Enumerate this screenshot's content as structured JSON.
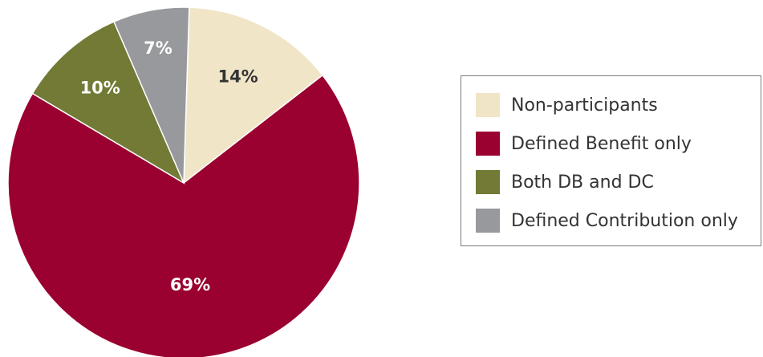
{
  "chart_data": {
    "type": "pie",
    "title": "",
    "slices": [
      {
        "name": "Non-participants",
        "value": 14,
        "label": "14%",
        "color": "#f1e5c8",
        "label_color": "#333333"
      },
      {
        "name": "Defined Benefit only",
        "value": 69,
        "label": "69%",
        "color": "#9a0030",
        "label_color": "#ffffff"
      },
      {
        "name": "Both DB and DC",
        "value": 10,
        "label": "10%",
        "color": "#727a35",
        "label_color": "#ffffff"
      },
      {
        "name": "Defined Contribution only",
        "value": 7,
        "label": "7%",
        "color": "#98999c",
        "label_color": "#ffffff"
      }
    ],
    "legend": {
      "position": "right",
      "items": [
        {
          "label": "Non-participants",
          "color": "#f1e5c8"
        },
        {
          "label": "Defined Benefit only",
          "color": "#9a0030"
        },
        {
          "label": "Both DB and DC",
          "color": "#727a35"
        },
        {
          "label": "Defined Contribution only",
          "color": "#98999c"
        }
      ]
    }
  }
}
